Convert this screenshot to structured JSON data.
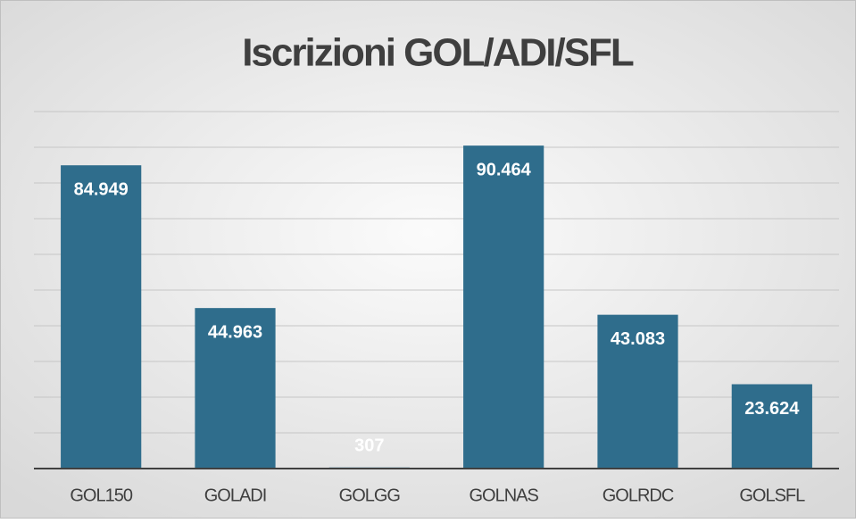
{
  "chart_data": {
    "type": "bar",
    "title": "Iscrizioni GOL/ADI/SFL",
    "categories": [
      "GOL150",
      "GOLADI",
      "GOLGG",
      "GOLNAS",
      "GOLRDC",
      "GOLSFL"
    ],
    "values": [
      84949,
      44963,
      307,
      90464,
      43083,
      23624
    ],
    "value_labels": [
      "84.949",
      "44.963",
      "307",
      "90.464",
      "43.083",
      "23.624"
    ],
    "color": "#2f6d8c",
    "ylim": [
      0,
      100000
    ],
    "yticks": [
      0,
      10000,
      20000,
      30000,
      40000,
      50000,
      60000,
      70000,
      80000,
      90000,
      100000
    ],
    "grid": true
  }
}
